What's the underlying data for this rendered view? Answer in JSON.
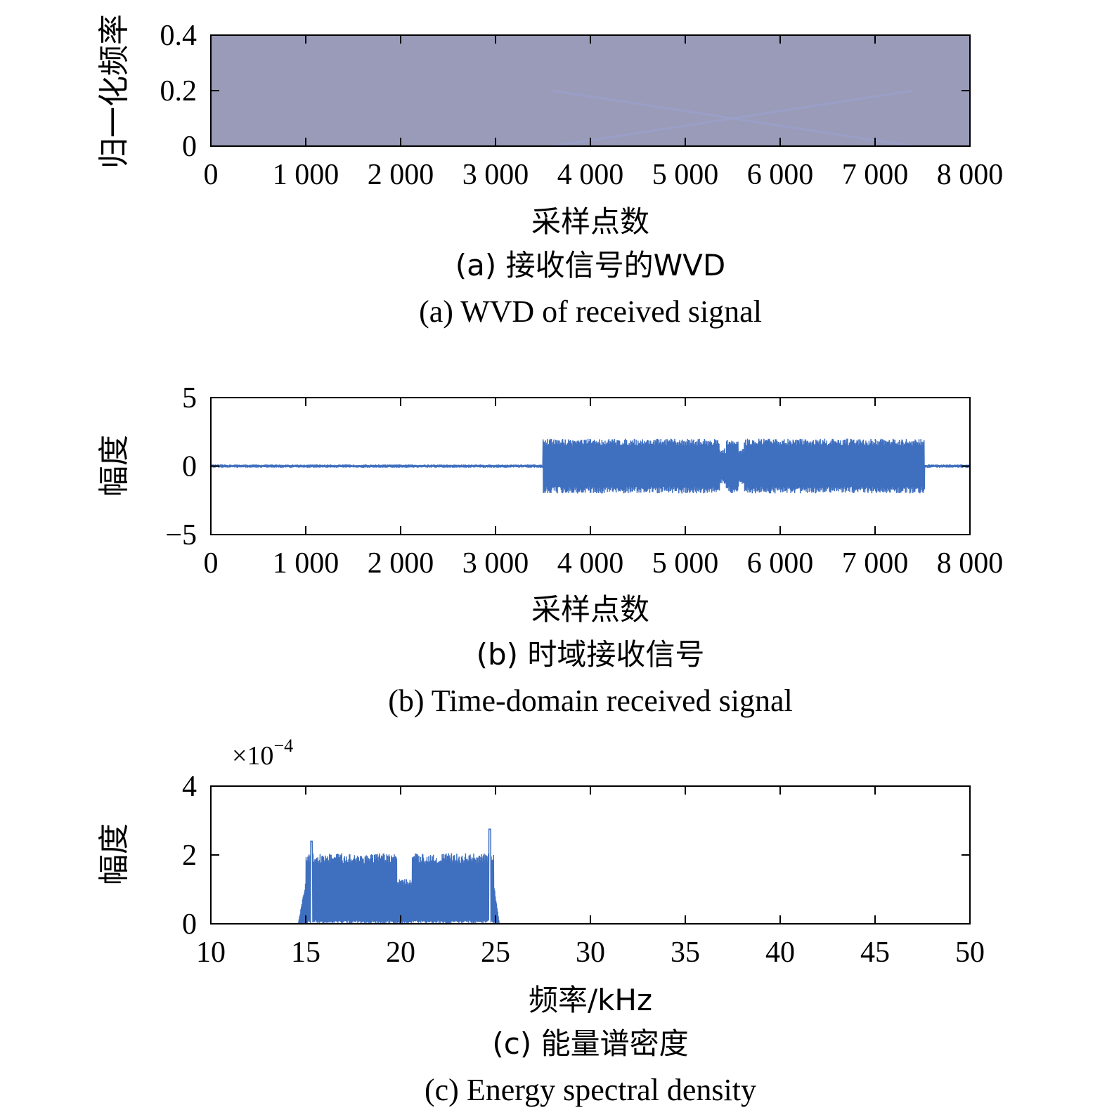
{
  "colors": {
    "line": "#3f6fbf",
    "wvd_bg": "#999bb8",
    "wvd_ridge": "#9aa0cc"
  },
  "chart_data": [
    {
      "id": "a",
      "type": "heatmap",
      "xlabel": "采样点数",
      "ylabel": "归一化频率",
      "xlim": [
        0,
        8000
      ],
      "ylim": [
        0,
        0.4
      ],
      "xticks": [
        0,
        1000,
        2000,
        3000,
        4000,
        5000,
        6000,
        7000,
        8000
      ],
      "xtick_labels": [
        "0",
        "1 000",
        "2 000",
        "3 000",
        "4 000",
        "5 000",
        "6 000",
        "7 000",
        "8 000"
      ],
      "yticks": [
        0,
        0.2,
        0.4
      ],
      "ytick_labels": [
        "0",
        "0.2",
        "0.4"
      ],
      "caption_cn": "(a) 接收信号的WVD",
      "caption_en": "(a) WVD of received signal",
      "ridges": [
        {
          "x": [
            3600,
            5500,
            7400
          ],
          "y": [
            0.2,
            0.1,
            0.0
          ]
        },
        {
          "x": [
            3600,
            5500,
            7400
          ],
          "y": [
            0.0,
            0.1,
            0.2
          ]
        }
      ]
    },
    {
      "id": "b",
      "type": "line",
      "xlabel": "采样点数",
      "ylabel": "幅度",
      "xlim": [
        0,
        8000
      ],
      "ylim": [
        -5,
        5
      ],
      "xticks": [
        0,
        1000,
        2000,
        3000,
        4000,
        5000,
        6000,
        7000,
        8000
      ],
      "xtick_labels": [
        "0",
        "1 000",
        "2 000",
        "3 000",
        "4 000",
        "5 000",
        "6 000",
        "7 000",
        "8 000"
      ],
      "yticks": [
        -5,
        0,
        5
      ],
      "ytick_labels": [
        "−5",
        "0",
        "5"
      ],
      "caption_cn": "(b) 时域接收信号",
      "caption_en": "(b) Time-domain received signal",
      "signal": {
        "noise_amplitude": 0.12,
        "burst_start": 3500,
        "burst_end": 7520,
        "burst_amplitude": 2.0,
        "dips": [
          [
            5360,
            5430
          ],
          [
            5560,
            5620
          ]
        ],
        "dip_amplitude": 1.3,
        "samples": 8000
      }
    },
    {
      "id": "c",
      "type": "line",
      "xlabel": "频率/kHz",
      "ylabel": "幅度",
      "xlim": [
        10,
        50
      ],
      "ylim": [
        0,
        4
      ],
      "scale_label": "×10",
      "scale_exponent": "−4",
      "xticks": [
        10,
        15,
        20,
        25,
        30,
        35,
        40,
        45,
        50
      ],
      "xtick_labels": [
        "10",
        "15",
        "20",
        "25",
        "30",
        "35",
        "40",
        "45",
        "50"
      ],
      "yticks": [
        0,
        2,
        4
      ],
      "ytick_labels": [
        "0",
        "2",
        "4"
      ],
      "caption_cn": "(c) 能量谱密度",
      "caption_en": "(c) Energy spectral density",
      "spectrum": {
        "band_start": 15.0,
        "band_end": 24.9,
        "level": 2.05,
        "peaks": [
          [
            15.3,
            2.4
          ],
          [
            24.7,
            2.75
          ]
        ],
        "notch": [
          19.8,
          20.6
        ],
        "notch_level": 1.3,
        "points": 3000
      }
    }
  ]
}
